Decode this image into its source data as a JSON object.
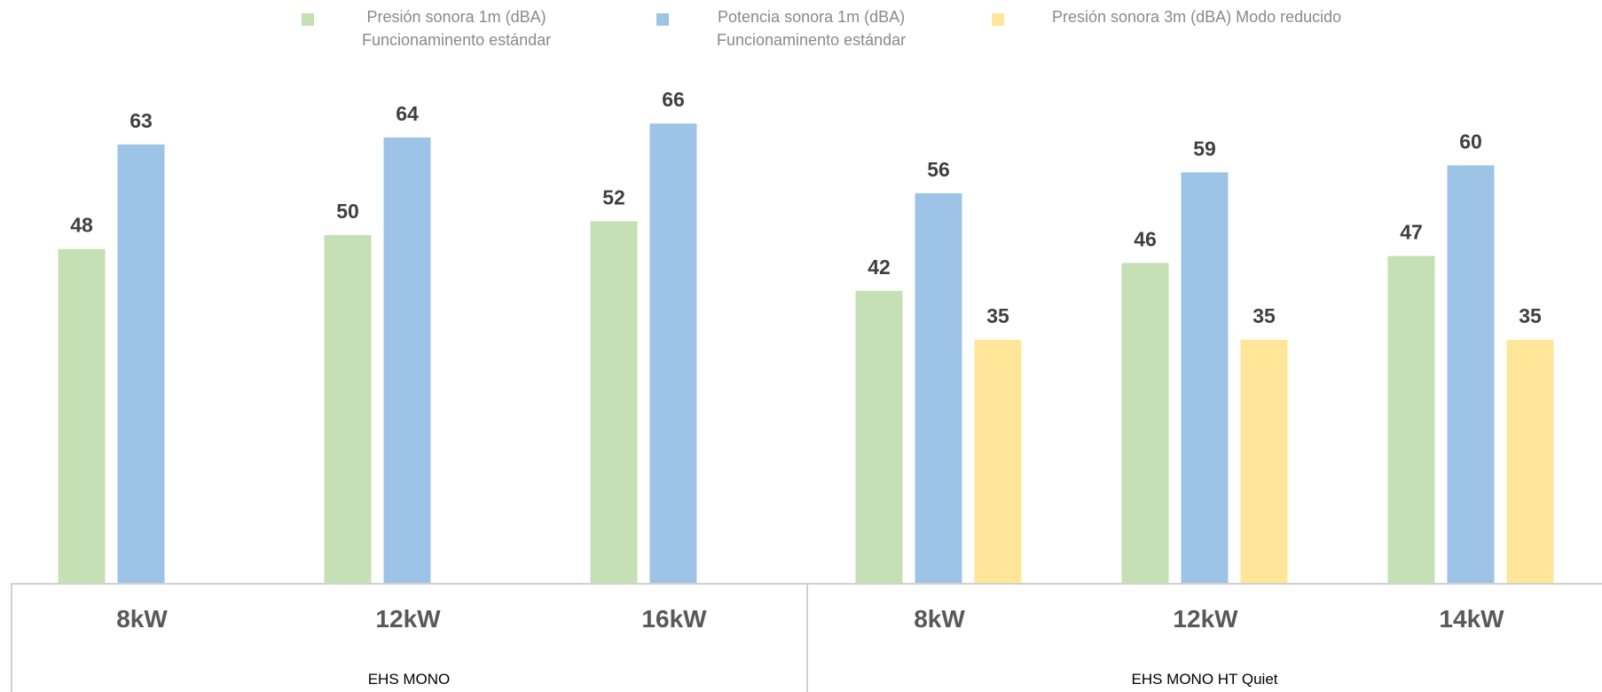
{
  "chart_data": {
    "type": "bar",
    "title": "",
    "ylim": [
      0,
      70
    ],
    "grid": false,
    "legend_position": "top",
    "groups": [
      {
        "label": "EHS MONO",
        "categories": [
          "8kW",
          "12kW",
          "16kW"
        ]
      },
      {
        "label": "EHS MONO HT Quiet",
        "categories": [
          "8kW",
          "12kW",
          "14kW"
        ]
      }
    ],
    "categories": [
      "8kW",
      "12kW",
      "16kW",
      "8kW",
      "12kW",
      "14kW"
    ],
    "series": [
      {
        "name": "Presión sonora 1m (dBA)\nFuncionaminento estándar",
        "color": "#c5e0b4",
        "values": [
          48,
          50,
          52,
          42,
          46,
          47
        ]
      },
      {
        "name": "Potencia sonora 1m (dBA)\nFuncionaminento estándar",
        "color": "#9dc3e6",
        "values": [
          63,
          64,
          66,
          56,
          59,
          60
        ]
      },
      {
        "name": "Presión sonora 3m (dBA) Modo reducido",
        "color": "#ffe699",
        "values": [
          null,
          null,
          null,
          35,
          35,
          35
        ]
      }
    ]
  }
}
